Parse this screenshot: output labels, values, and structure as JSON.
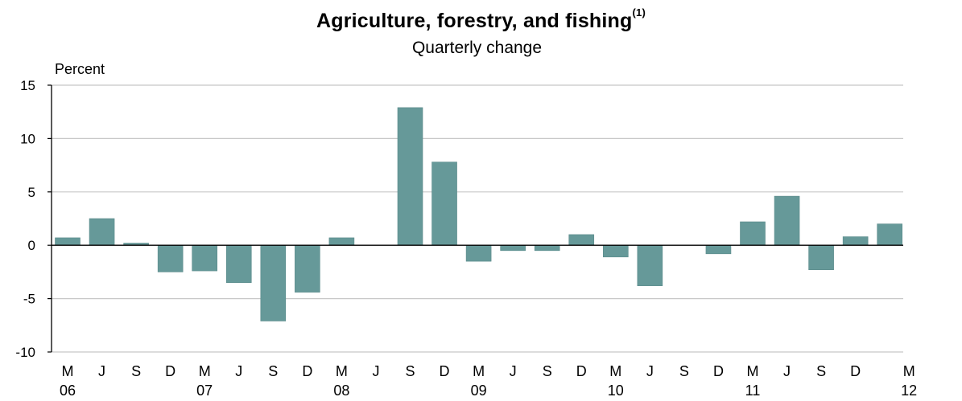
{
  "chart_data": {
    "type": "bar",
    "title": "Agriculture, forestry, and fishing",
    "title_superscript": "(1)",
    "subtitle": "Quarterly  change",
    "ylabel": "Percent",
    "xlabel": "",
    "ylim": [
      -10,
      15
    ],
    "yticks": [
      "15",
      "10",
      "5",
      "0",
      "-5",
      "-10"
    ],
    "grid": true,
    "bar_color": "#669999",
    "categories": [
      "M",
      "J",
      "S",
      "D",
      "M",
      "J",
      "S",
      "D",
      "M",
      "J",
      "S",
      "D",
      "M",
      "J",
      "S",
      "D",
      "M",
      "J",
      "S",
      "D",
      "M",
      "J",
      "S",
      "D",
      "M"
    ],
    "years": [
      {
        "label": "06",
        "index": 0
      },
      {
        "label": "07",
        "index": 4
      },
      {
        "label": "08",
        "index": 8
      },
      {
        "label": "09",
        "index": 12
      },
      {
        "label": "10",
        "index": 16
      },
      {
        "label": "11",
        "index": 20
      },
      {
        "label": "12",
        "index": 24
      }
    ],
    "series": [
      {
        "values": [
          0.7,
          2.5,
          0.2,
          -2.5,
          -2.4,
          -3.5,
          -7.1,
          -4.4,
          0.7,
          0,
          12.9,
          7.8,
          -1.5,
          -0.5,
          -0.5,
          1.0,
          -1.1,
          -3.8,
          0,
          -0.8,
          2.2,
          4.6,
          -2.3,
          0.8,
          2.0
        ]
      }
    ]
  }
}
